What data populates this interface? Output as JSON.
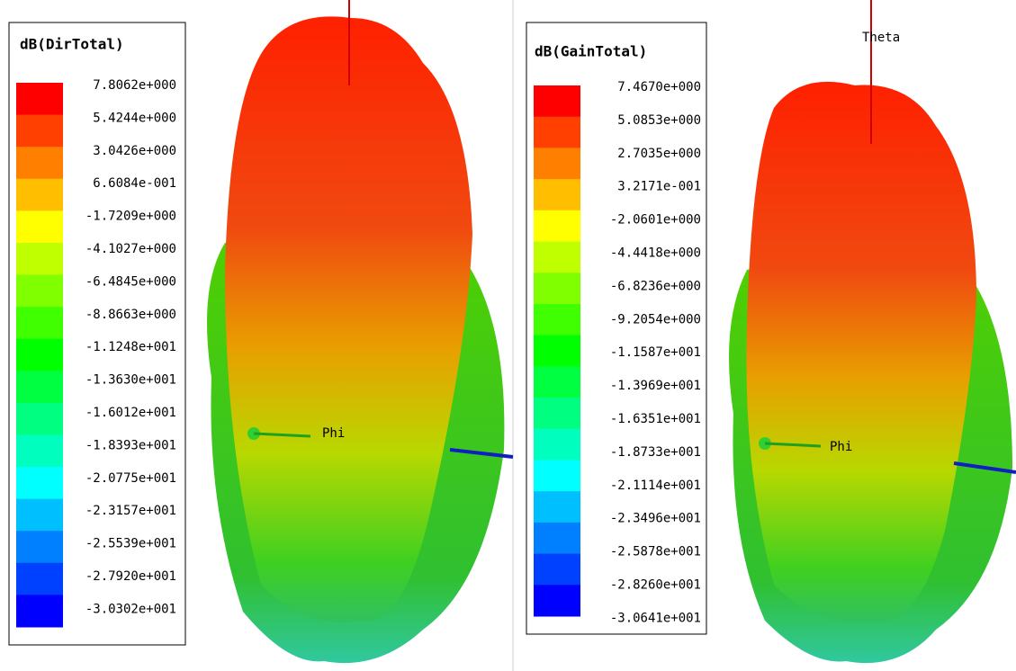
{
  "panels": [
    {
      "legend": {
        "title": "dB(DirTotal)",
        "labels": [
          "7.8062e+000",
          "5.4244e+000",
          "3.0426e+000",
          "6.6084e-001",
          "-1.7209e+000",
          "-4.1027e+000",
          "-6.4845e+000",
          "-8.8663e+000",
          "-1.1248e+001",
          "-1.3630e+001",
          "-1.6012e+001",
          "-1.8393e+001",
          "-2.0775e+001",
          "-2.3157e+001",
          "-2.5539e+001",
          "-2.7920e+001",
          "-3.0302e+001"
        ]
      },
      "axis_labels": {
        "phi": "Phi"
      }
    },
    {
      "legend": {
        "title": "dB(GainTotal)",
        "labels": [
          "7.4670e+000",
          "5.0853e+000",
          "2.7035e+000",
          "3.2171e-001",
          "-2.0601e+000",
          "-4.4418e+000",
          "-6.8236e+000",
          "-9.2054e+000",
          "-1.1587e+001",
          "-1.3969e+001",
          "-1.6351e+001",
          "-1.8733e+001",
          "-2.1114e+001",
          "-2.3496e+001",
          "-2.5878e+001",
          "-2.8260e+001",
          "-3.0641e+001"
        ]
      },
      "axis_labels": {
        "theta": "Theta",
        "phi": "Phi"
      }
    }
  ]
}
